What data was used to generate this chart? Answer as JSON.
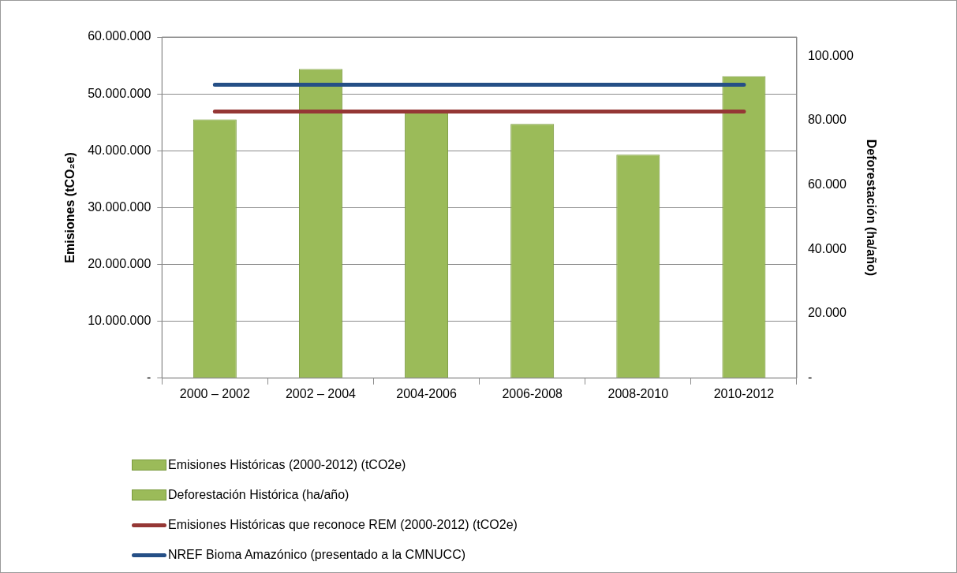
{
  "chart_data": {
    "type": "bar",
    "categories": [
      "2000 – 2002",
      "2002 – 2004",
      "2004-2006",
      "2006-2008",
      "2008-2010",
      "2010-2012"
    ],
    "series": [
      {
        "name": "Emisiones Históricas (2000-2012) (tCO2e)",
        "color": "#9bbb59",
        "values": [
          45500000,
          54400000,
          46700000,
          44700000,
          39300000,
          53100000
        ]
      },
      {
        "name": "Deforestación Histórica (ha/año)",
        "color": "#9bbb59",
        "values": [
          null,
          null,
          null,
          null,
          null,
          null
        ]
      },
      {
        "name": "Emisiones Históricas que reconoce REM (2000-2012) (tCO2e)",
        "type": "line",
        "color": "#953735",
        "values": [
          46900000,
          46900000,
          46900000,
          46900000,
          46900000,
          46900000
        ]
      },
      {
        "name": "NREF Bioma Amazónico (presentado a la CMNUCC)",
        "type": "line",
        "color": "#254f86",
        "values": [
          51600000,
          51600000,
          51600000,
          51600000,
          51600000,
          51600000
        ]
      }
    ],
    "ylabel": "Emisiones (tCO₂e)",
    "y2label": "Deforestación (ha/año)",
    "ylim": [
      0,
      60000000
    ],
    "yticks": [
      {
        "value": 0,
        "label": "-"
      },
      {
        "value": 10000000,
        "label": "10.000.000"
      },
      {
        "value": 20000000,
        "label": "20.000.000"
      },
      {
        "value": 30000000,
        "label": "30.000.000"
      },
      {
        "value": 40000000,
        "label": "40.000.000"
      },
      {
        "value": 50000000,
        "label": "50.000.000"
      },
      {
        "value": 60000000,
        "label": "60.000.000"
      }
    ],
    "y2lim": [
      0,
      105900
    ],
    "y2ticks": [
      {
        "value": 0,
        "label": "-"
      },
      {
        "value": 20000,
        "label": "20.000"
      },
      {
        "value": 40000,
        "label": "40.000"
      },
      {
        "value": 60000,
        "label": "60.000"
      },
      {
        "value": 80000,
        "label": "80.000"
      },
      {
        "value": 100000,
        "label": "100.000"
      }
    ],
    "grid": "y",
    "legend": "bottom",
    "marker": "none",
    "line_style": "solid"
  }
}
